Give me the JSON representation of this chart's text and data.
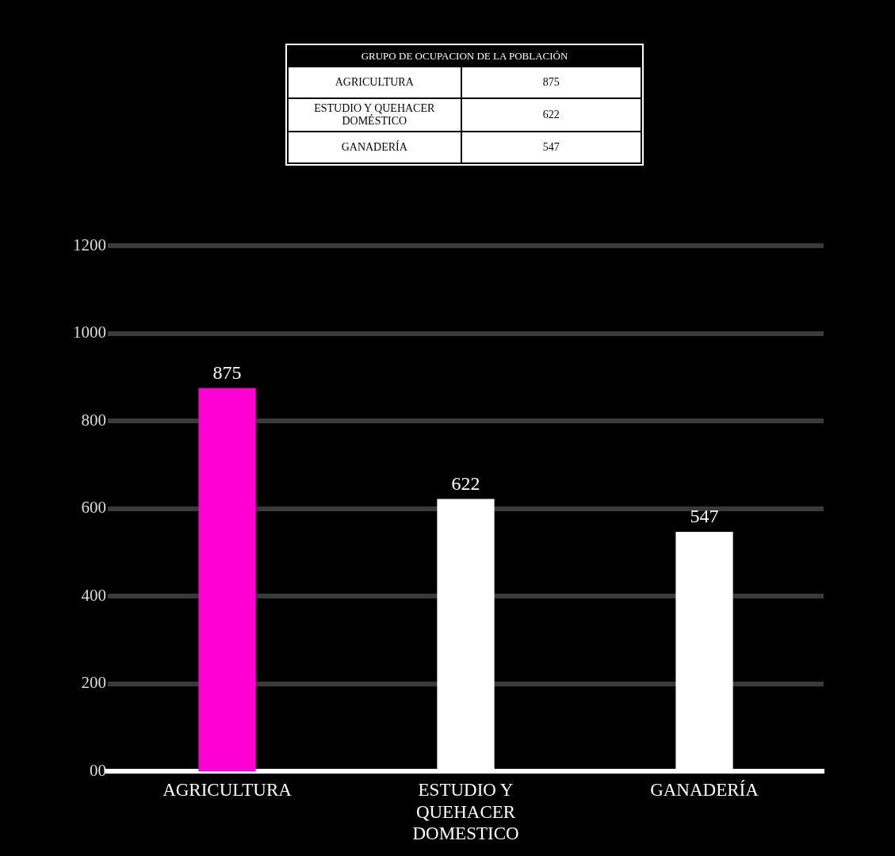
{
  "chart_data": {
    "type": "bar",
    "title": "GRUPO DE OCUPACION DE LA POBLACIÓN",
    "categories": [
      "AGRICULTURA",
      "ESTUDIO Y QUEHACER DOMESTICO",
      "GANADERÍA"
    ],
    "values": [
      875,
      622,
      547
    ],
    "colors": [
      "#ff00d4",
      "#ffffff",
      "#ffffff"
    ],
    "annotations": [
      "AGRICULTURA",
      "875",
      "ESTUDIO Y QUEHACER DOMÉSTICO",
      "622",
      "GANADERÍA",
      "547"
    ],
    "ylim": [
      0,
      1200
    ],
    "yticks": [
      {
        "value": 0,
        "label": "00"
      },
      200,
      400,
      600,
      800,
      1000,
      1200
    ],
    "grid": "y",
    "data_labels": true,
    "legend": false
  }
}
